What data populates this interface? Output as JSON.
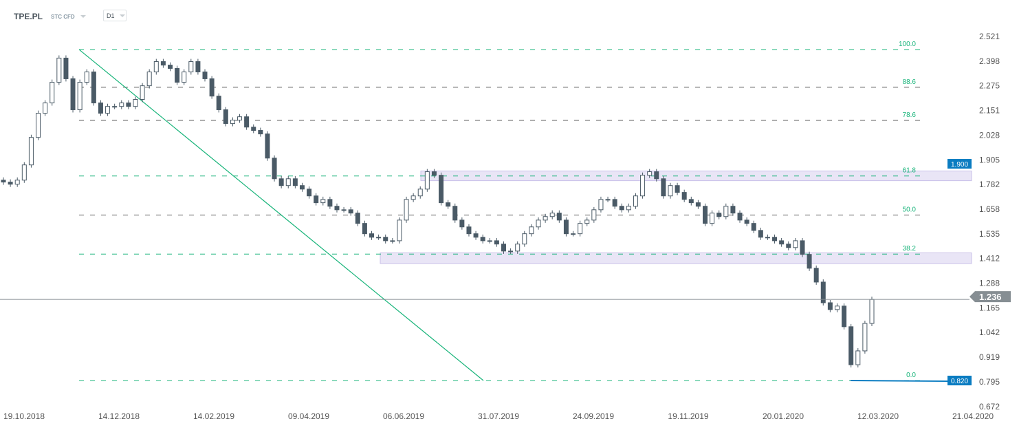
{
  "header": {
    "symbol": "TPE.PL",
    "instrument_type": "STC CFD",
    "timeframe": "D1"
  },
  "chart_data": {
    "type": "candlestick",
    "ylim": [
      0.672,
      2.521
    ],
    "y_ticks": [
      "2.521",
      "2.398",
      "2.275",
      "2.151",
      "2.028",
      "1.905",
      "1.782",
      "1.658",
      "1.535",
      "1.412",
      "1.288",
      "1.165",
      "1.042",
      "0.919",
      "0.795",
      "0.672"
    ],
    "x_ticks": [
      "19.10.2018",
      "14.12.2018",
      "14.02.2019",
      "09.04.2019",
      "06.06.2019",
      "31.07.2019",
      "24.09.2019",
      "19.11.2019",
      "20.01.2020",
      "12.03.2020",
      "21.04.2020"
    ],
    "closes": [
      1.838,
      1.827,
      1.848,
      1.926,
      2.067,
      2.191,
      2.244,
      2.35,
      2.474,
      2.368,
      2.209,
      2.35,
      2.403,
      2.244,
      2.191,
      2.226,
      2.226,
      2.244,
      2.226,
      2.262,
      2.332,
      2.403,
      2.456,
      2.438,
      2.421,
      2.35,
      2.403,
      2.456,
      2.403,
      2.368,
      2.279,
      2.209,
      2.138,
      2.156,
      2.173,
      2.12,
      2.103,
      2.085,
      1.961,
      1.855,
      1.82,
      1.855,
      1.82,
      1.802,
      1.767,
      1.732,
      1.749,
      1.714,
      1.696,
      1.696,
      1.679,
      1.626,
      1.573,
      1.555,
      1.555,
      1.537,
      1.537,
      1.643,
      1.749,
      1.767,
      1.802,
      1.891,
      1.873,
      1.732,
      1.714,
      1.643,
      1.608,
      1.573,
      1.555,
      1.537,
      1.537,
      1.52,
      1.484,
      1.484,
      1.52,
      1.573,
      1.608,
      1.643,
      1.661,
      1.679,
      1.643,
      1.573,
      1.573,
      1.626,
      1.643,
      1.696,
      1.749,
      1.749,
      1.714,
      1.696,
      1.714,
      1.767,
      1.873,
      1.891,
      1.855,
      1.767,
      1.82,
      1.785,
      1.749,
      1.732,
      1.714,
      1.626,
      1.679,
      1.661,
      1.714,
      1.679,
      1.643,
      1.626,
      1.59,
      1.555,
      1.555,
      1.537,
      1.52,
      1.502,
      1.537,
      1.467,
      1.396,
      1.325,
      1.219,
      1.184,
      1.202,
      1.096,
      0.901,
      0.972,
      1.113,
      1.236
    ],
    "current_price": {
      "value": 1.236,
      "label": "1.236",
      "color": "#868e93"
    },
    "fibonacci": {
      "high": 2.518,
      "low": 0.82,
      "levels": [
        {
          "ratio": 1.0,
          "label": "100.0",
          "color": "#18b47a"
        },
        {
          "ratio": 0.886,
          "label": "88.6",
          "color": "#555555"
        },
        {
          "ratio": 0.786,
          "label": "78.6",
          "color": "#555555"
        },
        {
          "ratio": 0.618,
          "label": "61.8",
          "color": "#18b47a"
        },
        {
          "ratio": 0.5,
          "label": "50.0",
          "color": "#555555"
        },
        {
          "ratio": 0.382,
          "label": "38.2",
          "color": "#18b47a"
        },
        {
          "ratio": 0.0,
          "label": "0.0",
          "color": "#18b47a"
        }
      ]
    },
    "zones": [
      {
        "from": 1.845,
        "to": 1.895
      },
      {
        "from": 1.42,
        "to": 1.475
      }
    ],
    "price_labels": [
      {
        "value": 1.9,
        "label": "1.900"
      },
      {
        "value": 0.82,
        "label": "0.820"
      }
    ],
    "colors": {
      "bearish": "#4a5a66",
      "bullish": "#ffffff",
      "outline": "#4a5a66",
      "zone": "#e9e5f6",
      "zone_border": "#c9c0e8",
      "trendline": "#18b47a",
      "marker": "#0a7cc1"
    }
  }
}
